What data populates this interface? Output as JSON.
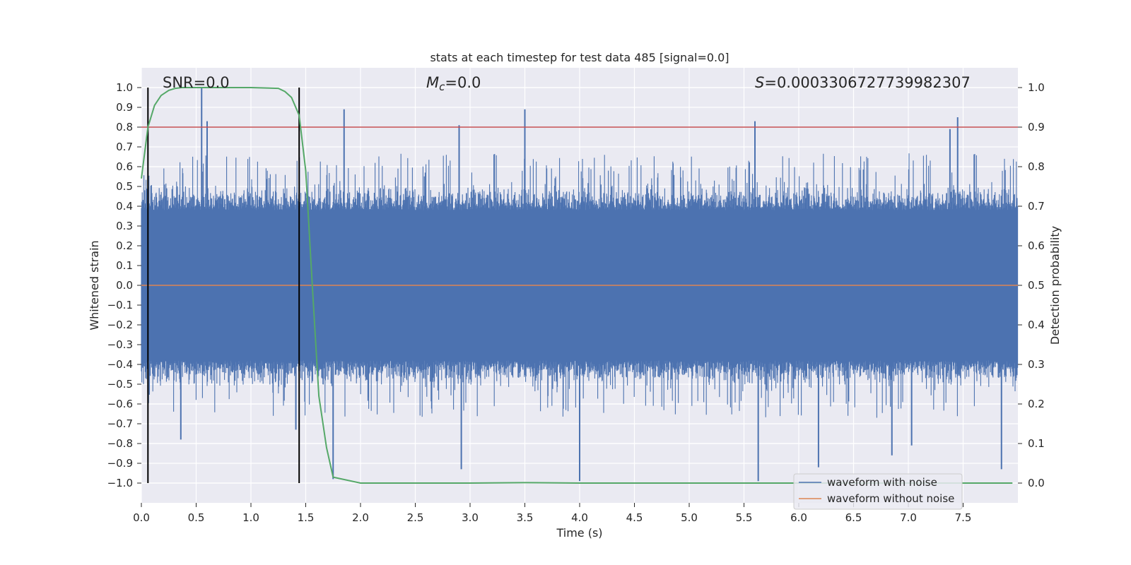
{
  "chart_data": {
    "type": "line",
    "title": "stats at each timestep for test data 485 [signal=0.0]",
    "xlabel": "Time (s)",
    "ylabel": "Whitened strain",
    "ylabel_right": "Detection probability",
    "xlim": [
      0.0,
      8.0
    ],
    "ylim": [
      -1.1,
      1.1
    ],
    "ylim_right": [
      -0.05,
      1.05
    ],
    "x_ticks": [
      0.0,
      0.5,
      1.0,
      1.5,
      2.0,
      2.5,
      3.0,
      3.5,
      4.0,
      4.5,
      5.0,
      5.5,
      6.0,
      6.5,
      7.0,
      7.5
    ],
    "x_tick_labels": [
      "0.0",
      "0.5",
      "1.0",
      "1.5",
      "2.0",
      "2.5",
      "3.0",
      "3.5",
      "4.0",
      "4.5",
      "5.0",
      "5.5",
      "6.0",
      "6.5",
      "7.0",
      "7.5"
    ],
    "y_ticks": [
      1.0,
      0.9,
      0.8,
      0.7,
      0.6,
      0.5,
      0.4,
      0.3,
      0.2,
      0.1,
      0.0,
      -0.1,
      -0.2,
      -0.3,
      -0.4,
      -0.5,
      -0.6,
      -0.7,
      -0.8,
      -0.9,
      -1.0
    ],
    "y_tick_labels": [
      "1.0",
      "0.9",
      "0.8",
      "0.7",
      "0.6",
      "0.5",
      "0.4",
      "0.3",
      "0.2",
      "0.1",
      "0.0",
      "−0.1",
      "−0.2",
      "−0.3",
      "−0.4",
      "−0.5",
      "−0.6",
      "−0.7",
      "−0.8",
      "−0.9",
      "−1.0"
    ],
    "y_right_ticks": [
      1.0,
      0.9,
      0.8,
      0.7,
      0.6,
      0.5,
      0.4,
      0.3,
      0.2,
      0.1,
      0.0
    ],
    "y_right_tick_labels": [
      "1.0",
      "0.9",
      "0.8",
      "0.7",
      "0.6",
      "0.5",
      "0.4",
      "0.3",
      "0.2",
      "0.1",
      "0.0"
    ],
    "grid": true,
    "legend_position": "lower-right",
    "annotations": {
      "snr": "SNR=0.0",
      "mc": "M",
      "mc_sub": "c",
      "mc_val": "=0.0",
      "s_sym": "S",
      "s_val": "=0.0003306727739982307"
    },
    "threshold_right": 0.9,
    "vertical_markers_x": [
      0.06,
      1.44
    ],
    "series": [
      {
        "name": "waveform with noise",
        "color": "#4c72b0",
        "kind": "noise",
        "x_range": [
          0.0,
          8.0
        ],
        "envelope_core": 0.38,
        "extreme_peaks": [
          {
            "x": 0.55,
            "y": 1.0
          },
          {
            "x": 0.6,
            "y": 0.83
          },
          {
            "x": 0.36,
            "y": -0.78
          },
          {
            "x": 1.85,
            "y": 0.89
          },
          {
            "x": 1.75,
            "y": -0.98
          },
          {
            "x": 2.9,
            "y": 0.81
          },
          {
            "x": 2.92,
            "y": -0.93
          },
          {
            "x": 3.5,
            "y": 0.89
          },
          {
            "x": 4.0,
            "y": -0.99
          },
          {
            "x": 5.6,
            "y": 0.83
          },
          {
            "x": 5.63,
            "y": -0.99
          },
          {
            "x": 6.18,
            "y": -0.92
          },
          {
            "x": 7.45,
            "y": 0.85
          },
          {
            "x": 7.38,
            "y": 0.79
          },
          {
            "x": 7.85,
            "y": -0.93
          },
          {
            "x": 1.41,
            "y": -0.73
          },
          {
            "x": 6.85,
            "y": -0.86
          },
          {
            "x": 7.03,
            "y": -0.81
          }
        ]
      },
      {
        "name": "waveform without noise",
        "color": "#dd8452",
        "x": [
          0.0,
          8.0
        ],
        "y": [
          0.0,
          0.0
        ]
      },
      {
        "name": "detection probability",
        "color": "#55a868",
        "axis": "right",
        "x": [
          0.0,
          0.06,
          0.12,
          0.18,
          0.25,
          0.31,
          0.37,
          0.5,
          0.75,
          1.0,
          1.25,
          1.31,
          1.37,
          1.44,
          1.5,
          1.56,
          1.62,
          1.69,
          1.75,
          2.0,
          3.0,
          3.5,
          4.0,
          5.0,
          6.0,
          7.0,
          7.95
        ],
        "y": [
          0.77,
          0.9,
          0.955,
          0.98,
          0.993,
          0.998,
          1.0,
          1.0,
          1.0,
          1.0,
          0.998,
          0.99,
          0.975,
          0.93,
          0.79,
          0.5,
          0.22,
          0.09,
          0.015,
          0.0,
          0.0,
          0.001,
          0.0,
          0.0,
          0.0,
          0.0,
          0.0
        ]
      }
    ],
    "colors": {
      "plot_background": "#eaeaf2",
      "grid": "#ffffff",
      "threshold": "#c44e52",
      "markers": "#000000"
    }
  }
}
